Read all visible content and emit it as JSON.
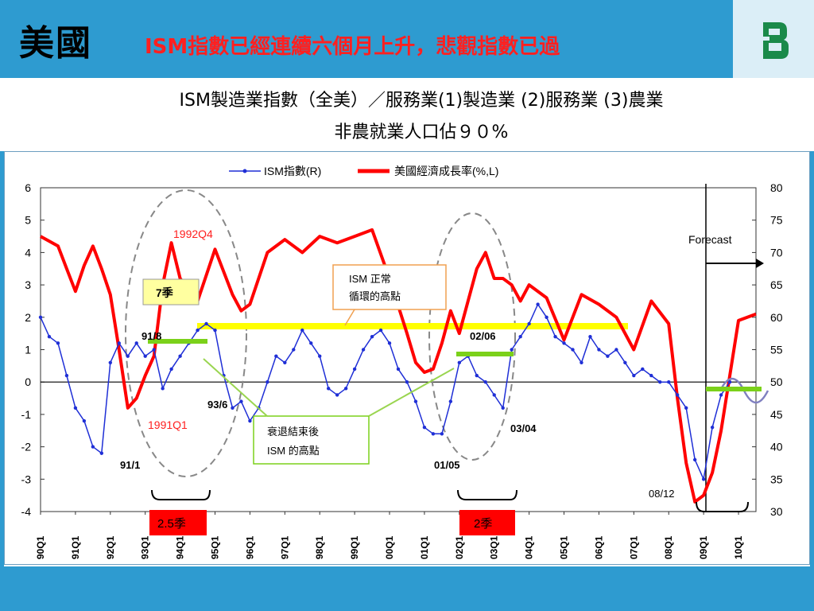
{
  "header": {
    "title": "美國",
    "subtitle": "ISM指數已經連續六個月上升，悲觀指數已過"
  },
  "description": {
    "line1": "ISM製造業指數（全美）／服務業(1)製造業 (2)服務業 (3)農業",
    "line2": "非農就業人口佔９０%"
  },
  "colors": {
    "header_bg": "#2e9bd0",
    "title_red": "#ff2020",
    "ism_line": "#1f2fd6",
    "gdp_line": "#ff0000",
    "threshold_line": "#ffff00",
    "marker_green": "#7bd11a"
  },
  "chart_data": {
    "type": "line",
    "legend": [
      "ISM指數(R)",
      "美國經濟成長率(%,L)"
    ],
    "legend_position": "top-center",
    "left_axis": {
      "range": [
        -4,
        6
      ],
      "ticks": [
        "6",
        "5",
        "4",
        "3",
        "2",
        "1",
        "0",
        "-1",
        "-2",
        "-3",
        "-4"
      ]
    },
    "right_axis": {
      "range": [
        30,
        80
      ],
      "ticks": [
        "80",
        "75",
        "70",
        "65",
        "60",
        "55",
        "50",
        "45",
        "40",
        "35",
        "30"
      ]
    },
    "x_ticks": [
      "90Q1",
      "91Q1",
      "92Q1",
      "93Q1",
      "94Q1",
      "95Q1",
      "96Q1",
      "97Q1",
      "98Q1",
      "99Q1",
      "00Q1",
      "01Q1",
      "02Q1",
      "03Q1",
      "04Q1",
      "05Q1",
      "06Q1",
      "07Q1",
      "08Q1",
      "09Q1",
      "10Q1"
    ],
    "x_range": [
      1990.0,
      2010.5
    ],
    "gdp_series": {
      "name": "美國經濟成長率(%,L)",
      "x": [
        1990.0,
        1990.5,
        1990.75,
        1991.0,
        1991.25,
        1991.5,
        1991.75,
        1992.0,
        1992.25,
        1992.5,
        1992.75,
        1993.0,
        1993.25,
        1993.5,
        1993.75,
        1994.0,
        1994.5,
        1995.0,
        1995.5,
        1995.75,
        1996.0,
        1996.5,
        1997.0,
        1997.5,
        1998.0,
        1998.5,
        1999.0,
        1999.5,
        2000.0,
        2000.5,
        2000.75,
        2001.0,
        2001.25,
        2001.5,
        2001.75,
        2002.0,
        2002.25,
        2002.5,
        2002.75,
        2003.0,
        2003.25,
        2003.5,
        2003.75,
        2004.0,
        2004.5,
        2005.0,
        2005.5,
        2006.0,
        2006.5,
        2007.0,
        2007.5,
        2008.0,
        2008.25,
        2008.5,
        2008.75,
        2009.0,
        2009.25,
        2009.5,
        2009.75,
        2010.0,
        2010.5
      ],
      "values": [
        4.5,
        4.2,
        3.5,
        2.8,
        3.6,
        4.2,
        3.5,
        2.7,
        1.0,
        -0.8,
        -0.5,
        0.2,
        0.8,
        3.0,
        4.3,
        3.2,
        2.5,
        4.1,
        2.7,
        2.2,
        2.4,
        4.0,
        4.4,
        4.0,
        4.5,
        4.3,
        4.5,
        4.7,
        3.2,
        1.5,
        0.6,
        0.3,
        0.4,
        1.2,
        2.2,
        1.5,
        2.5,
        3.5,
        4.0,
        3.2,
        3.2,
        3.0,
        2.5,
        3.0,
        2.6,
        1.3,
        2.7,
        2.4,
        2.0,
        1.0,
        2.5,
        1.8,
        -0.5,
        -2.5,
        -3.7,
        -3.5,
        -2.8,
        -1.5,
        0.2,
        1.9,
        2.1
      ]
    },
    "ism_series": {
      "name": "ISM指數(R)",
      "x": [
        1990.0,
        1990.25,
        1990.5,
        1990.75,
        1991.0,
        1991.25,
        1991.5,
        1991.75,
        1992.0,
        1992.25,
        1992.5,
        1992.75,
        1993.0,
        1993.25,
        1993.5,
        1993.75,
        1994.0,
        1994.25,
        1994.5,
        1994.75,
        1995.0,
        1995.25,
        1995.5,
        1995.75,
        1996.0,
        1996.25,
        1996.5,
        1996.75,
        1997.0,
        1997.25,
        1997.5,
        1997.75,
        1998.0,
        1998.25,
        1998.5,
        1998.75,
        1999.0,
        1999.25,
        1999.5,
        1999.75,
        2000.0,
        2000.25,
        2000.5,
        2000.75,
        2001.0,
        2001.25,
        2001.5,
        2001.75,
        2002.0,
        2002.25,
        2002.5,
        2002.75,
        2003.0,
        2003.25,
        2003.5,
        2003.75,
        2004.0,
        2004.25,
        2004.5,
        2004.75,
        2005.0,
        2005.25,
        2005.5,
        2005.75,
        2006.0,
        2006.25,
        2006.5,
        2006.75,
        2007.0,
        2007.25,
        2007.5,
        2007.75,
        2008.0,
        2008.25,
        2008.5,
        2008.75,
        2009.0,
        2009.25,
        2009.5,
        2009.75
      ],
      "values": [
        60,
        57,
        56,
        51,
        46,
        44,
        40,
        39,
        53,
        56,
        54,
        56,
        54,
        55,
        49,
        52,
        54,
        56,
        58,
        59,
        58,
        51,
        46,
        47,
        44,
        46,
        50,
        54,
        53,
        55,
        58,
        56,
        54,
        49,
        48,
        49,
        52,
        55,
        57,
        58,
        56,
        52,
        50,
        47,
        43,
        42,
        42,
        47,
        53,
        54,
        51,
        50,
        48,
        46,
        55,
        57,
        59,
        62,
        60,
        57,
        56,
        55,
        53,
        57,
        55,
        54,
        55,
        53,
        51,
        52,
        51,
        50,
        50,
        48,
        46,
        38,
        35,
        43,
        48,
        50
      ]
    },
    "annotations": [
      "1992Q4",
      "1991Q1",
      "7季",
      "91/8",
      "93/6",
      "91/1",
      "ISM 正常 循環的高點",
      "衰退結束後 ISM 的高點",
      "02/06",
      "03/04",
      "01/05",
      "08/12",
      "Forecast",
      "2.5季",
      "2季"
    ]
  }
}
